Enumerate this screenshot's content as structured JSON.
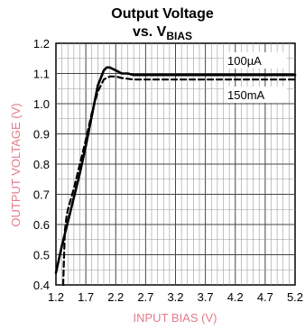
{
  "chart_data": {
    "type": "line",
    "title": "Output Voltage",
    "subtitle_prefix": "vs. V",
    "subtitle_sub": "BIAS",
    "xlabel": "INPUT BIAS (V)",
    "ylabel": "OUTPUT VOLTAGE (V)",
    "xlim": [
      1.2,
      5.2
    ],
    "ylim": [
      0.4,
      1.2
    ],
    "xticks": [
      "1.2",
      "1.7",
      "2.2",
      "2.7",
      "3.2",
      "3.7",
      "4.2",
      "4.7",
      "5.2"
    ],
    "yticks": [
      "0.4",
      "0.5",
      "0.6",
      "0.7",
      "0.8",
      "0.9",
      "1.0",
      "1.1",
      "1.2"
    ],
    "grid": true,
    "series": [
      {
        "name": "100µA",
        "color": "#000000",
        "style": "solid",
        "x": [
          1.2,
          1.3,
          1.4,
          1.5,
          1.6,
          1.7,
          1.8,
          1.9,
          2.0,
          2.05,
          2.1,
          2.2,
          2.3,
          2.4,
          2.5,
          2.7,
          3.2,
          4.2,
          5.2
        ],
        "y": [
          0.44,
          0.53,
          0.61,
          0.69,
          0.77,
          0.86,
          0.96,
          1.06,
          1.11,
          1.12,
          1.12,
          1.11,
          1.1,
          1.1,
          1.095,
          1.095,
          1.095,
          1.095,
          1.095
        ]
      },
      {
        "name": "150mA",
        "color": "#000000",
        "style": "dashed",
        "x": [
          1.32,
          1.35,
          1.38,
          1.4,
          1.5,
          1.6,
          1.7,
          1.8,
          1.9,
          2.0,
          2.1,
          2.2,
          2.3,
          2.5,
          2.7,
          3.2,
          4.2,
          5.2
        ],
        "y": [
          0.4,
          0.58,
          0.63,
          0.65,
          0.72,
          0.8,
          0.88,
          0.97,
          1.04,
          1.08,
          1.09,
          1.09,
          1.085,
          1.08,
          1.08,
          1.08,
          1.08,
          1.08
        ]
      }
    ]
  }
}
